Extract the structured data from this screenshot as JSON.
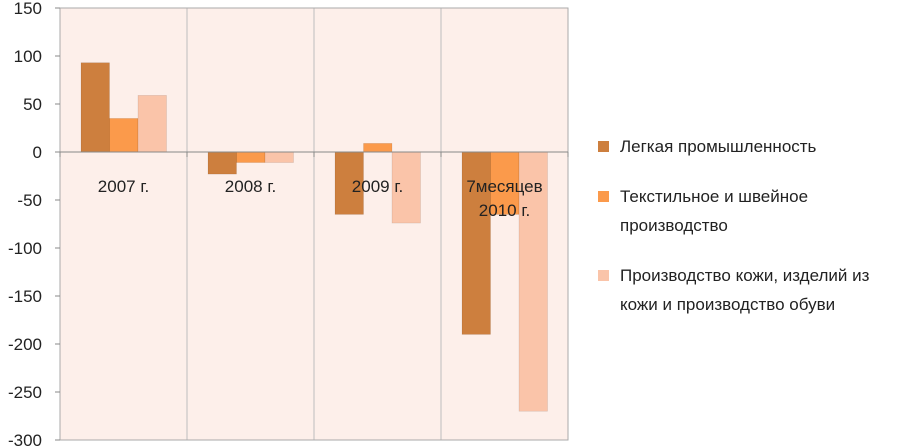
{
  "chart_data": {
    "type": "bar",
    "categories": [
      "2007 г.",
      "2008 г.",
      "2009 г.",
      "7месяцев 2010 г."
    ],
    "category_lines": [
      [
        "2007 г."
      ],
      [
        "2008 г."
      ],
      [
        "2009 г."
      ],
      [
        "7месяцев",
        "2010 г."
      ]
    ],
    "series": [
      {
        "name": "Легкая промышленность",
        "color": "#CD7F3E",
        "values": [
          93,
          -23,
          -65,
          -190
        ]
      },
      {
        "name": "Текстильное и швейное производство",
        "color": "#FB9A4B",
        "values": [
          35,
          -11,
          9,
          -65
        ]
      },
      {
        "name": "Производство кожи, изделий из кожи и производство обуви",
        "color": "#FAC4A9",
        "values": [
          59,
          -11,
          -74,
          -270
        ]
      }
    ],
    "ylim": [
      -300,
      150
    ],
    "yticks": [
      "150",
      "100",
      "50",
      "0",
      "-50",
      "-100",
      "-150",
      "-200",
      "-250",
      "-300"
    ],
    "grid": "vertical",
    "legend": "right",
    "plot_background": "#FDEFEA"
  },
  "legend": {
    "items": [
      {
        "label": "Легкая промышленность"
      },
      {
        "label": "Текстильное и швейное производство"
      },
      {
        "label": "Производство кожи, изделий из кожи и производство обуви"
      }
    ]
  }
}
